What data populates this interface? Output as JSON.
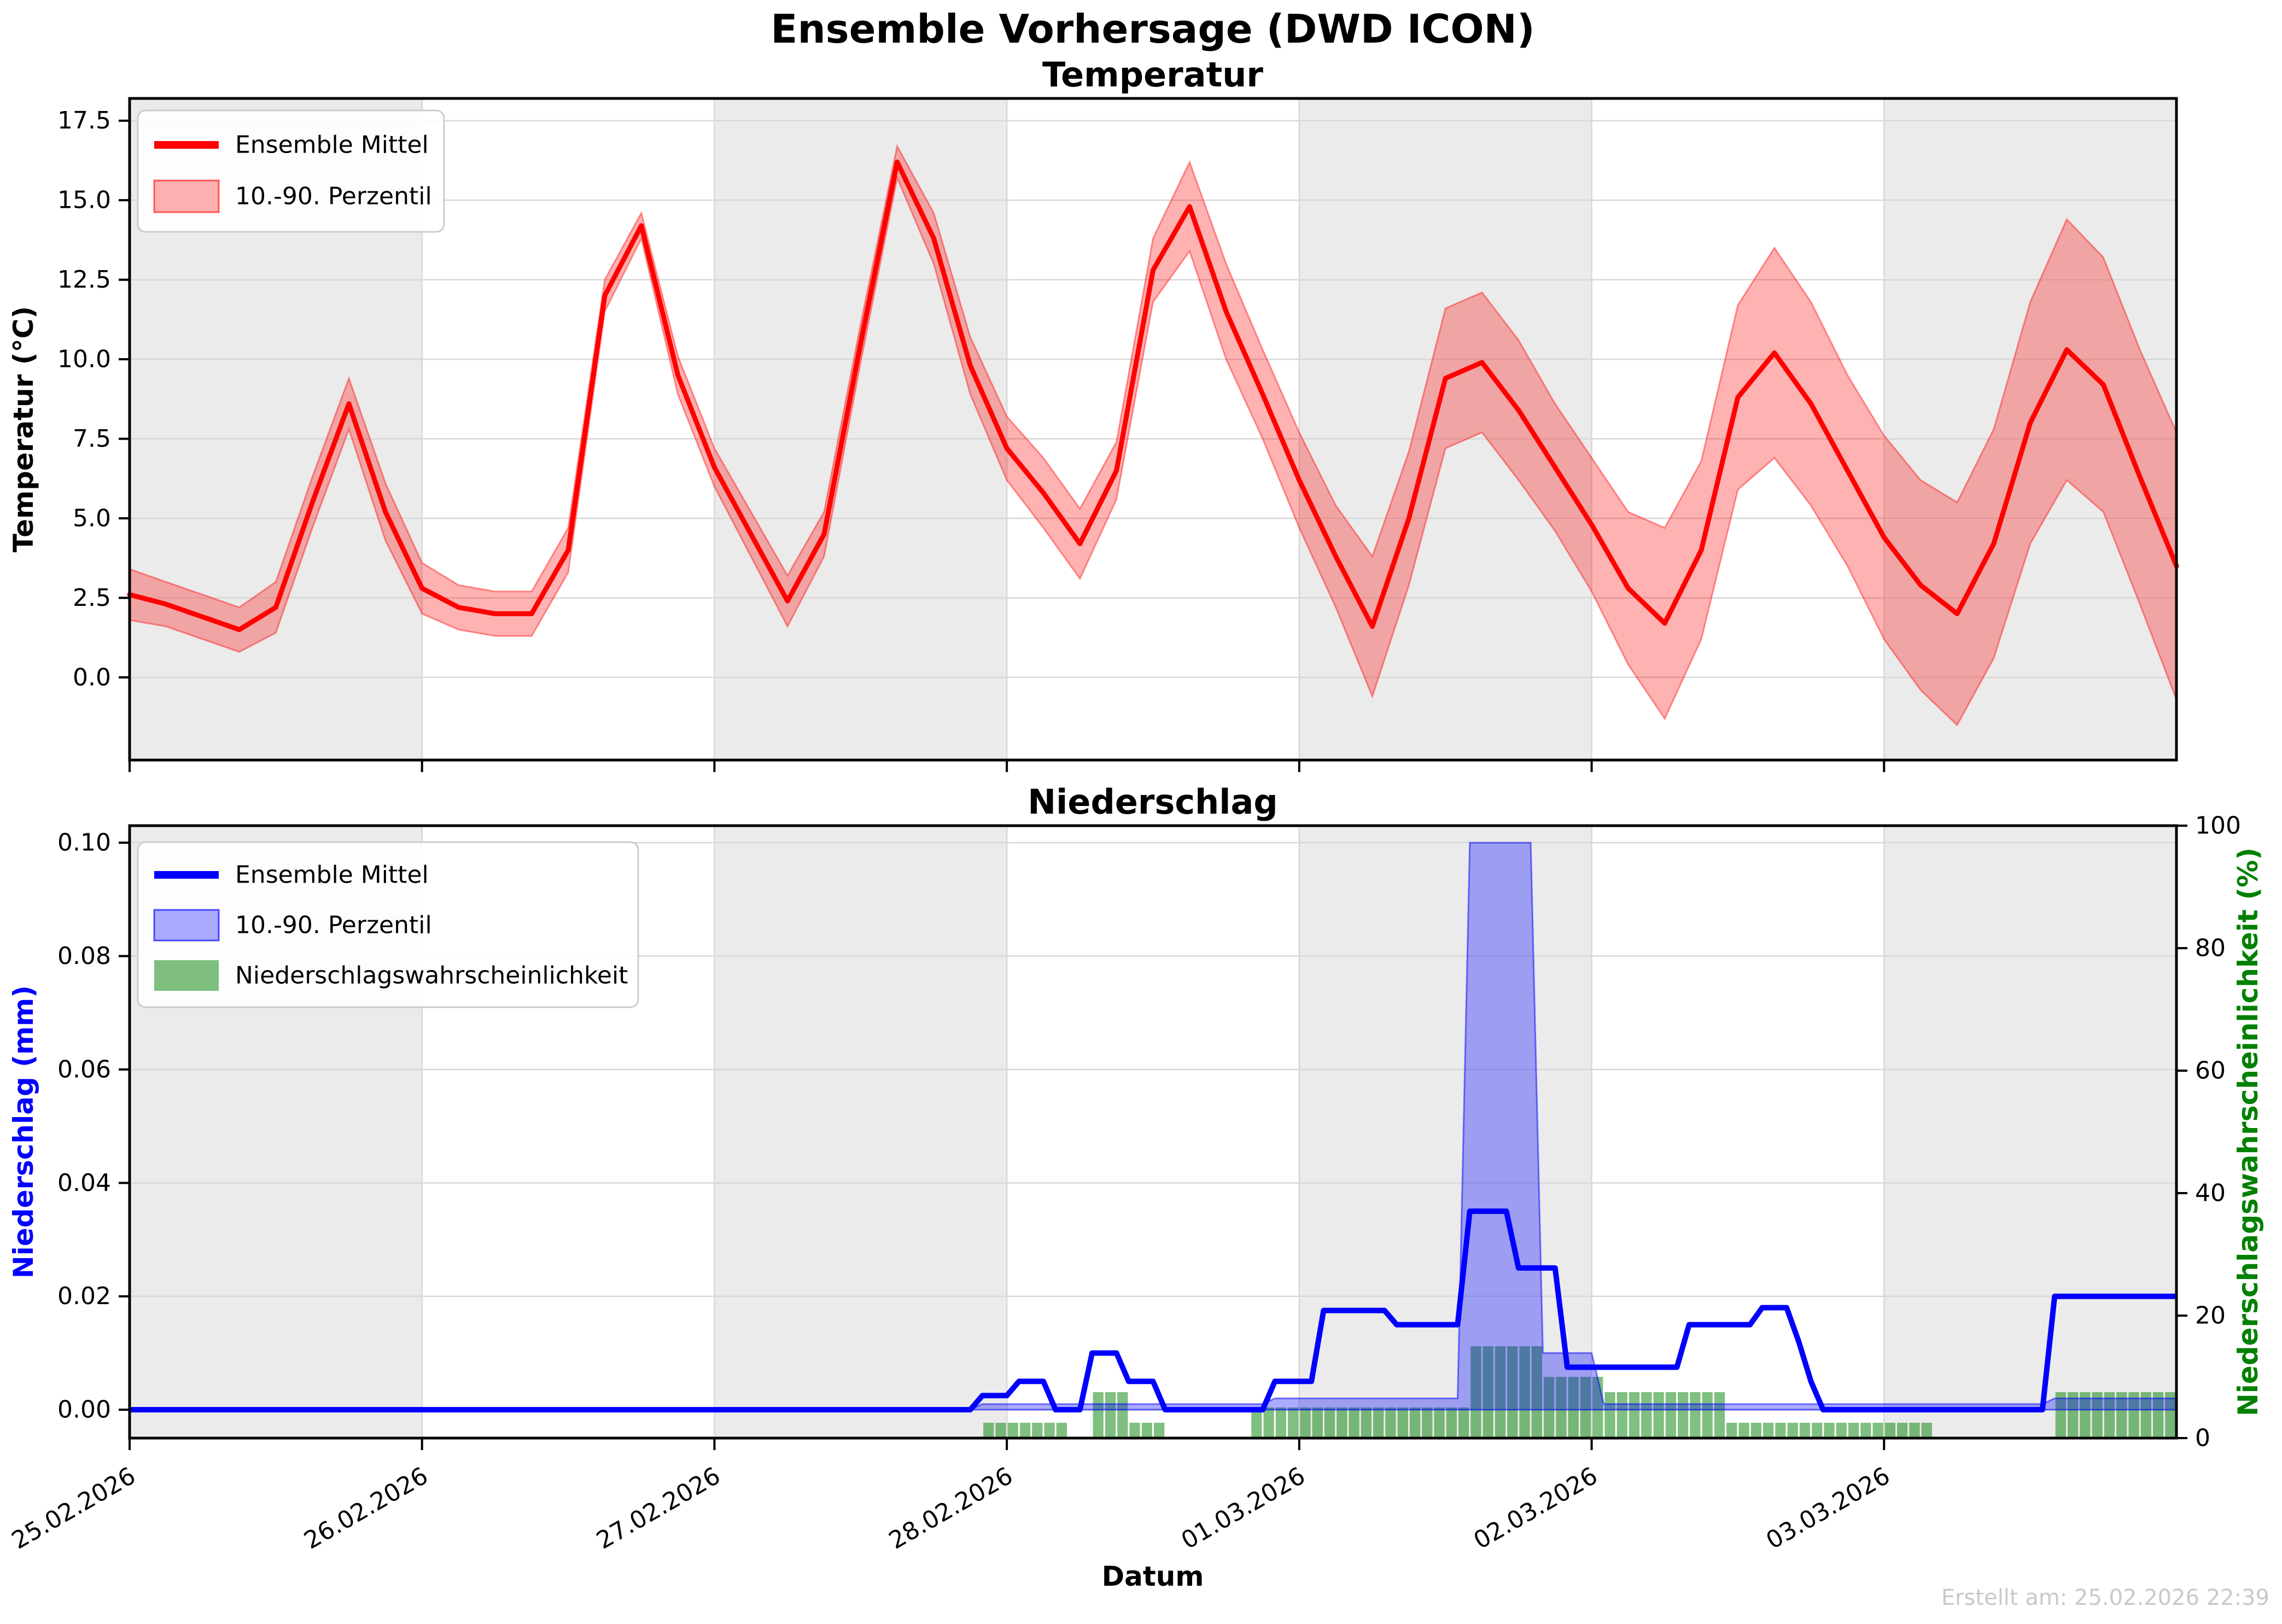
{
  "figure": {
    "suptitle": "Ensemble Vorhersage (DWD ICON)",
    "created_label": "Erstellt am: 25.02.2026 22:39",
    "background_color": "#ffffff",
    "day_shade_color": "#ebebeb",
    "grid_color": "#d8d8d8",
    "spine_color": "#000000",
    "timestamp_color": "#c9c9c9"
  },
  "x_axis": {
    "label": "Datum",
    "tick_labels": [
      "25.02.2026",
      "26.02.2026",
      "27.02.2026",
      "28.02.2026",
      "01.03.2026",
      "02.03.2026",
      "03.03.2026"
    ],
    "tick_hours": [
      0,
      24,
      48,
      72,
      96,
      120,
      144
    ],
    "total_hours": 168,
    "shaded_day_bands": [
      [
        0,
        24
      ],
      [
        48,
        72
      ],
      [
        96,
        120
      ],
      [
        144,
        168
      ]
    ]
  },
  "chart_data": [
    {
      "type": "line",
      "title": "Temperatur",
      "ylabel": "Temperatur (°C)",
      "ylim": [
        -2.6,
        18.2
      ],
      "grid": true,
      "legend_position": "upper left",
      "ytick_values": [
        0.0,
        2.5,
        5.0,
        7.5,
        10.0,
        12.5,
        15.0,
        17.5
      ],
      "ytick_labels": [
        "0.0",
        "2.5",
        "5.0",
        "7.5",
        "10.0",
        "12.5",
        "15.0",
        "17.5"
      ],
      "legend": [
        {
          "label": "Ensemble Mittel",
          "type": "line",
          "color": "#ff0000"
        },
        {
          "label": "10.-90. Perzentil",
          "type": "patch",
          "color": "rgba(255,0,0,0.30)"
        }
      ],
      "colors": {
        "mean_line": "#ff0000",
        "band_fill": "rgba(255,0,0,0.30)",
        "band_edge": "rgba(255,0,0,0.40)"
      },
      "x_hours_step": 3,
      "series": [
        {
          "name": "Ensemble Mittel",
          "values": [
            2.6,
            2.3,
            1.9,
            1.5,
            2.2,
            5.5,
            8.6,
            5.2,
            2.8,
            2.2,
            2.0,
            2.0,
            4.0,
            12.0,
            14.2,
            9.5,
            6.6,
            4.5,
            2.4,
            4.5,
            10.5,
            16.2,
            13.8,
            9.8,
            7.2,
            5.8,
            4.2,
            6.5,
            12.8,
            14.8,
            11.5,
            8.9,
            6.2,
            3.8,
            1.6,
            5.0,
            9.4,
            9.9,
            8.4,
            6.6,
            4.8,
            2.8,
            1.7,
            4.0,
            8.8,
            10.2,
            8.6,
            6.5,
            4.4,
            2.9,
            2.0,
            4.2,
            8.0,
            10.3,
            9.2,
            6.3,
            3.5
          ]
        },
        {
          "name": "10. Perzentil",
          "values": [
            1.8,
            1.6,
            1.2,
            0.8,
            1.4,
            4.7,
            7.8,
            4.3,
            2.0,
            1.5,
            1.3,
            1.3,
            3.3,
            11.5,
            13.8,
            8.9,
            6.0,
            3.8,
            1.6,
            3.8,
            9.9,
            15.7,
            13.0,
            8.9,
            6.2,
            4.7,
            3.1,
            5.6,
            11.8,
            13.4,
            10.0,
            7.5,
            4.7,
            2.2,
            -0.6,
            2.9,
            7.2,
            7.7,
            6.2,
            4.6,
            2.7,
            0.4,
            -1.3,
            1.2,
            5.9,
            6.9,
            5.4,
            3.5,
            1.2,
            -0.4,
            -1.5,
            0.6,
            4.2,
            6.2,
            5.2,
            2.3,
            -0.7
          ]
        },
        {
          "name": "90. Perzentil",
          "values": [
            3.4,
            3.0,
            2.6,
            2.2,
            3.0,
            6.3,
            9.4,
            6.1,
            3.6,
            2.9,
            2.7,
            2.7,
            4.7,
            12.5,
            14.6,
            10.1,
            7.2,
            5.2,
            3.2,
            5.2,
            11.1,
            16.7,
            14.6,
            10.7,
            8.2,
            6.9,
            5.3,
            7.4,
            13.8,
            16.2,
            13.0,
            10.3,
            7.7,
            5.4,
            3.8,
            7.1,
            11.6,
            12.1,
            10.6,
            8.6,
            6.9,
            5.2,
            4.7,
            6.8,
            11.7,
            13.5,
            11.8,
            9.5,
            7.6,
            6.2,
            5.5,
            7.8,
            11.8,
            14.4,
            13.2,
            10.3,
            7.7
          ]
        }
      ]
    },
    {
      "type": "line+bar",
      "title": "Niederschlag",
      "ylabel_left": "Niederschlag (mm)",
      "ylabel_right": "Niederschlagswahrscheinlichkeit (%)",
      "ylim_left": [
        -0.005,
        0.103
      ],
      "ylim_right": [
        0,
        100
      ],
      "grid": true,
      "legend_position": "upper left",
      "ytick_values_left": [
        0.0,
        0.02,
        0.04,
        0.06,
        0.08,
        0.1
      ],
      "ytick_labels_left": [
        "0.00",
        "0.02",
        "0.04",
        "0.06",
        "0.08",
        "0.10"
      ],
      "ytick_values_right": [
        0,
        20,
        40,
        60,
        80,
        100
      ],
      "ytick_labels_right": [
        "0",
        "20",
        "40",
        "60",
        "80",
        "100"
      ],
      "legend": [
        {
          "label": "Ensemble Mittel",
          "type": "line",
          "color": "#0000ff"
        },
        {
          "label": "10.-90. Perzentil",
          "type": "patch",
          "color": "rgba(0,0,255,0.33)"
        },
        {
          "label": "Niederschlagswahrscheinlichkeit",
          "type": "patch",
          "color": "rgba(0,128,0,0.5)"
        }
      ],
      "colors": {
        "mean_line": "#0000ff",
        "band_fill": "rgba(0,0,255,0.33)",
        "band_edge": "rgba(0,0,255,0.50)",
        "bar_fill": "rgba(0,128,0,0.50)",
        "left_axis": "#0000ff",
        "right_axis": "#008000"
      },
      "mean_mm_segments": [
        [
          0,
          70,
          0
        ],
        [
          70,
          73,
          0.0025
        ],
        [
          73,
          76,
          0.005
        ],
        [
          76,
          79,
          0
        ],
        [
          79,
          82,
          0.01
        ],
        [
          82,
          85,
          0.005
        ],
        [
          85,
          94,
          0
        ],
        [
          94,
          98,
          0.005
        ],
        [
          98,
          104,
          0.0175
        ],
        [
          104,
          110,
          0.015
        ],
        [
          110,
          114,
          0.035
        ],
        [
          114,
          118,
          0.025
        ],
        [
          118,
          128,
          0.0075
        ],
        [
          128,
          134,
          0.015
        ],
        [
          134,
          137,
          0.018
        ],
        [
          137,
          138,
          0.012
        ],
        [
          138,
          139,
          0.005
        ],
        [
          139,
          158,
          0
        ],
        [
          158,
          169,
          0.02
        ]
      ],
      "p90_mm_segments": [
        [
          0,
          70,
          0
        ],
        [
          70,
          94,
          0.001
        ],
        [
          94,
          110,
          0.002
        ],
        [
          110,
          116,
          0.1
        ],
        [
          116,
          121,
          0.01
        ],
        [
          121,
          158,
          0.001
        ],
        [
          158,
          169,
          0.002
        ]
      ],
      "p10_mm": 0,
      "probability_pct_segments": [
        [
          0,
          70,
          0
        ],
        [
          70,
          77,
          2.5
        ],
        [
          77,
          79,
          0
        ],
        [
          79,
          82,
          7.5
        ],
        [
          82,
          85,
          2.5
        ],
        [
          85,
          92,
          0
        ],
        [
          92,
          110,
          5
        ],
        [
          110,
          116,
          15
        ],
        [
          116,
          121,
          10
        ],
        [
          121,
          131,
          7.5
        ],
        [
          131,
          148,
          2.5
        ],
        [
          148,
          158,
          0
        ],
        [
          158,
          168,
          7.5
        ],
        [
          168,
          169,
          0
        ]
      ]
    }
  ]
}
